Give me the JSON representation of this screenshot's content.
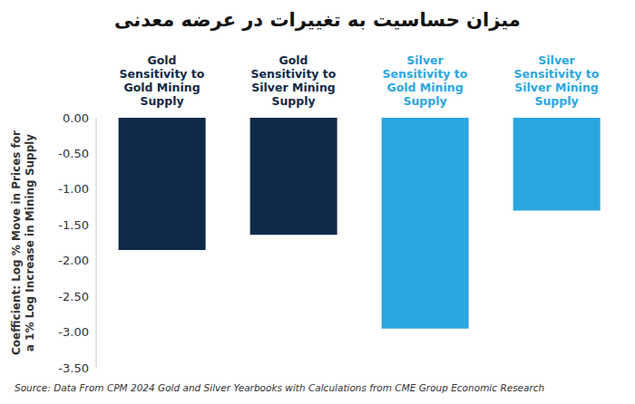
{
  "chart_data": {
    "type": "bar",
    "title": "میزان حساسیت به تغییرات در عرضه معدنی",
    "y_label": "Coefficient: Log % Move in Prices for a 1% Log Increase in Mining Supply",
    "source": "Source: Data From CPM 2024 Gold and Silver Yearbooks with Calculations from CME Group Economic Research",
    "categories": [
      "Gold Sensitivity to Gold Mining Supply",
      "Gold Sensitivity to Silver Mining Supply",
      "Silver Sensitivity to Gold Mining Supply",
      "Silver Sensitivity to Silver Mining Supply"
    ],
    "values": [
      -1.85,
      -1.64,
      -2.95,
      -1.3
    ],
    "colors": [
      "#0f2a48",
      "#0f2a48",
      "#2ba6e0",
      "#2ba6e0"
    ],
    "ylim": [
      -3.5,
      0
    ],
    "yticks": [
      {
        "value": 0,
        "label": "0.00"
      },
      {
        "value": -0.5,
        "label": "-0.50"
      },
      {
        "value": -1,
        "label": "-1.00"
      },
      {
        "value": -1.5,
        "label": "-1.50"
      },
      {
        "value": -2,
        "label": "-2.00"
      },
      {
        "value": -2.5,
        "label": "-2.50"
      },
      {
        "value": -3,
        "label": "-3.00"
      },
      {
        "value": -3.5,
        "label": "-3.50"
      }
    ],
    "grid": false
  }
}
